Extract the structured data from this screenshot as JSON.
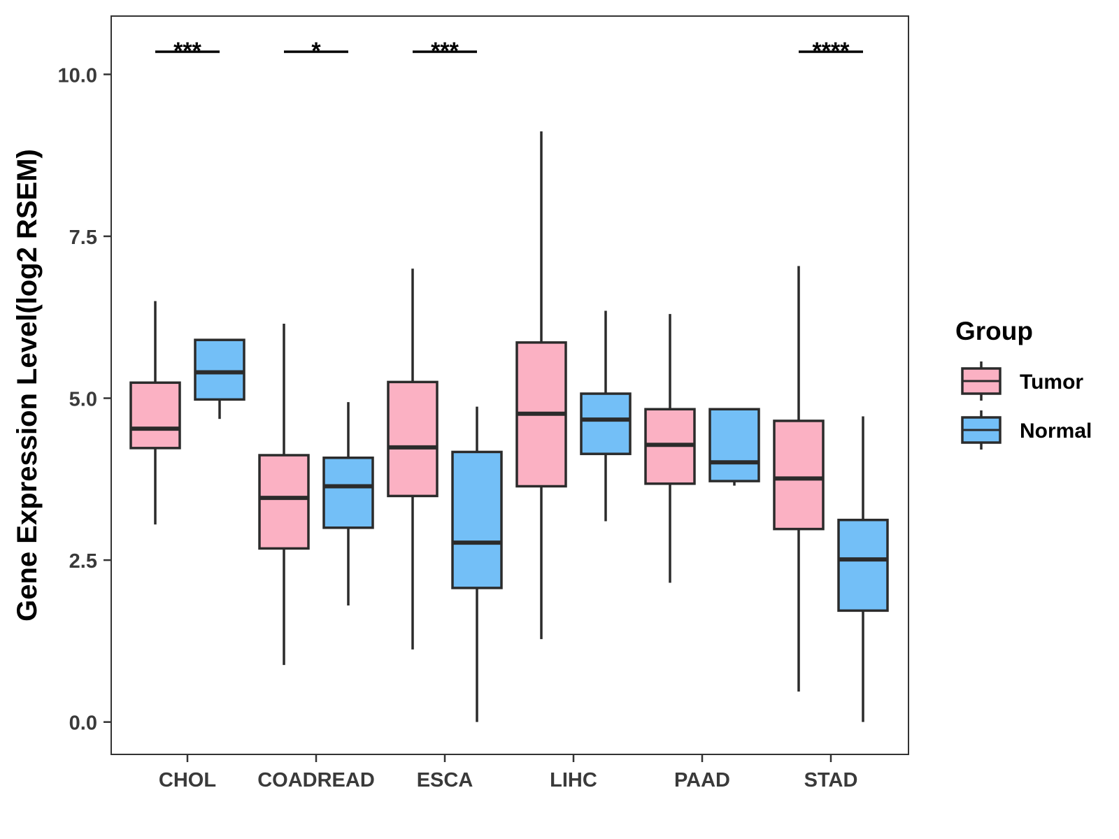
{
  "chart_data": {
    "type": "boxplot",
    "title": "",
    "xlabel": "",
    "ylabel": "Gene Expression Level(log2 RSEM)",
    "ylim": [
      -0.5,
      10.9
    ],
    "yticks": [
      0.0,
      2.5,
      5.0,
      7.5,
      10.0
    ],
    "ytick_labels": [
      "0.0",
      "2.5",
      "5.0",
      "7.5",
      "10.0"
    ],
    "categories": [
      "CHOL",
      "COADREAD",
      "ESCA",
      "LIHC",
      "PAAD",
      "STAD"
    ],
    "legend": {
      "title": "Group",
      "position": "right",
      "entries": [
        {
          "name": "Tumor",
          "color": "#FBB1C3"
        },
        {
          "name": "Normal",
          "color": "#73BFF7"
        }
      ]
    },
    "series": [
      {
        "name": "Tumor",
        "color": "#FBB1C3",
        "boxes": [
          {
            "whisker_low": 3.05,
            "q1": 4.23,
            "median": 4.53,
            "q3": 5.24,
            "whisker_high": 6.5
          },
          {
            "whisker_low": 0.88,
            "q1": 2.68,
            "median": 3.46,
            "q3": 4.12,
            "whisker_high": 6.15
          },
          {
            "whisker_low": 1.12,
            "q1": 3.49,
            "median": 4.24,
            "q3": 5.25,
            "whisker_high": 7.0
          },
          {
            "whisker_low": 1.28,
            "q1": 3.64,
            "median": 4.76,
            "q3": 5.86,
            "whisker_high": 9.12
          },
          {
            "whisker_low": 2.15,
            "q1": 3.68,
            "median": 4.28,
            "q3": 4.83,
            "whisker_high": 6.3
          },
          {
            "whisker_low": 0.47,
            "q1": 2.98,
            "median": 3.76,
            "q3": 4.65,
            "whisker_high": 7.04
          }
        ]
      },
      {
        "name": "Normal",
        "color": "#73BFF7",
        "boxes": [
          {
            "whisker_low": 4.68,
            "q1": 4.98,
            "median": 5.4,
            "q3": 5.9,
            "whisker_high": 5.9
          },
          {
            "whisker_low": 1.8,
            "q1": 3.0,
            "median": 3.64,
            "q3": 4.08,
            "whisker_high": 4.94
          },
          {
            "whisker_low": 0.0,
            "q1": 2.07,
            "median": 2.77,
            "q3": 4.17,
            "whisker_high": 4.87
          },
          {
            "whisker_low": 3.1,
            "q1": 4.14,
            "median": 4.67,
            "q3": 5.07,
            "whisker_high": 6.35
          },
          {
            "whisker_low": 3.65,
            "q1": 3.72,
            "median": 4.01,
            "q3": 4.83,
            "whisker_high": 4.83
          },
          {
            "whisker_low": 0.0,
            "q1": 1.72,
            "median": 2.51,
            "q3": 3.12,
            "whisker_high": 4.72
          }
        ]
      }
    ],
    "significance": [
      {
        "category": "CHOL",
        "label": "***",
        "y": 10.35
      },
      {
        "category": "COADREAD",
        "label": "*",
        "y": 10.35
      },
      {
        "category": "ESCA",
        "label": "***",
        "y": 10.35
      },
      {
        "category": "STAD",
        "label": "****",
        "y": 10.35
      }
    ]
  }
}
